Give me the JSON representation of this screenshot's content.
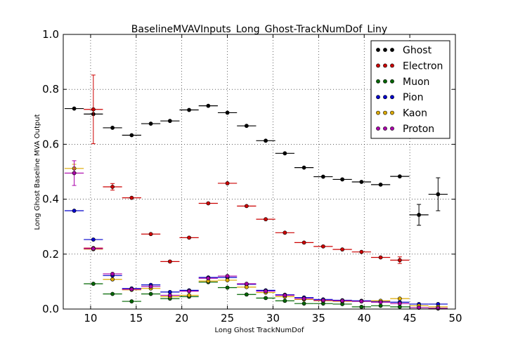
{
  "chart_data": {
    "type": "scatter",
    "title": "BaselineMVAVInputs_Long_Ghost-TrackNumDof_Liny",
    "xlabel": "Long Ghost TrackNumDof",
    "ylabel": "Long Ghost Baseline MVA Output",
    "xlim": [
      7,
      50
    ],
    "ylim": [
      0,
      1
    ],
    "xticks": [
      10,
      15,
      20,
      25,
      30,
      35,
      40,
      45,
      50
    ],
    "yticks": [
      0.0,
      0.2,
      0.4,
      0.6,
      0.8,
      1.0
    ],
    "xtick_labels": [
      "10",
      "15",
      "20",
      "25",
      "30",
      "35",
      "40",
      "45",
      "50"
    ],
    "ytick_labels": [
      "0.0",
      "0.2",
      "0.4",
      "0.6",
      "0.8",
      "1.0"
    ],
    "grid": true,
    "legend_position": "top-right",
    "bin_half_width": 1.05,
    "series": [
      {
        "name": "Ghost",
        "color": "#000000",
        "points": [
          {
            "x": 8.2,
            "y": 0.73
          },
          {
            "x": 10.3,
            "y": 0.71
          },
          {
            "x": 12.4,
            "y": 0.66
          },
          {
            "x": 14.5,
            "y": 0.633
          },
          {
            "x": 16.6,
            "y": 0.675
          },
          {
            "x": 18.7,
            "y": 0.685
          },
          {
            "x": 20.8,
            "y": 0.725
          },
          {
            "x": 22.9,
            "y": 0.74
          },
          {
            "x": 25.0,
            "y": 0.715
          },
          {
            "x": 27.1,
            "y": 0.667
          },
          {
            "x": 29.2,
            "y": 0.613
          },
          {
            "x": 31.3,
            "y": 0.567
          },
          {
            "x": 33.4,
            "y": 0.515
          },
          {
            "x": 35.5,
            "y": 0.482
          },
          {
            "x": 37.6,
            "y": 0.472
          },
          {
            "x": 39.7,
            "y": 0.463
          },
          {
            "x": 41.8,
            "y": 0.453
          },
          {
            "x": 43.9,
            "y": 0.483
          },
          {
            "x": 46.0,
            "y": 0.343,
            "err": 0.038
          },
          {
            "x": 48.1,
            "y": 0.418,
            "err": 0.06
          }
        ]
      },
      {
        "name": "Electron",
        "color": "#cc0000",
        "points": [
          {
            "x": 10.3,
            "y": 0.727,
            "err": 0.125
          },
          {
            "x": 10.3,
            "y": 0.222
          },
          {
            "x": 12.4,
            "y": 0.445,
            "err": 0.012
          },
          {
            "x": 14.5,
            "y": 0.405
          },
          {
            "x": 16.6,
            "y": 0.273
          },
          {
            "x": 18.7,
            "y": 0.173
          },
          {
            "x": 20.8,
            "y": 0.26
          },
          {
            "x": 22.9,
            "y": 0.385
          },
          {
            "x": 25.0,
            "y": 0.458
          },
          {
            "x": 27.1,
            "y": 0.375
          },
          {
            "x": 29.2,
            "y": 0.327
          },
          {
            "x": 31.3,
            "y": 0.278
          },
          {
            "x": 33.4,
            "y": 0.242
          },
          {
            "x": 35.5,
            "y": 0.228
          },
          {
            "x": 37.6,
            "y": 0.217
          },
          {
            "x": 39.7,
            "y": 0.208
          },
          {
            "x": 41.8,
            "y": 0.188
          },
          {
            "x": 43.9,
            "y": 0.178,
            "err": 0.012
          }
        ]
      },
      {
        "name": "Muon",
        "color": "#006600",
        "points": [
          {
            "x": 10.3,
            "y": 0.092
          },
          {
            "x": 12.4,
            "y": 0.055
          },
          {
            "x": 14.5,
            "y": 0.028
          },
          {
            "x": 16.6,
            "y": 0.055
          },
          {
            "x": 18.7,
            "y": 0.038
          },
          {
            "x": 20.8,
            "y": 0.045
          },
          {
            "x": 22.9,
            "y": 0.098
          },
          {
            "x": 25.0,
            "y": 0.078
          },
          {
            "x": 27.1,
            "y": 0.053
          },
          {
            "x": 29.2,
            "y": 0.04
          },
          {
            "x": 31.3,
            "y": 0.03
          },
          {
            "x": 33.4,
            "y": 0.02
          },
          {
            "x": 35.5,
            "y": 0.02
          },
          {
            "x": 37.6,
            "y": 0.018
          },
          {
            "x": 39.7,
            "y": 0.008
          },
          {
            "x": 41.8,
            "y": 0.012
          },
          {
            "x": 43.9,
            "y": 0.008
          },
          {
            "x": 46.0,
            "y": 0.005
          },
          {
            "x": 48.1,
            "y": 0.002
          }
        ]
      },
      {
        "name": "Pion",
        "color": "#0000cc",
        "points": [
          {
            "x": 8.2,
            "y": 0.358
          },
          {
            "x": 10.3,
            "y": 0.253
          },
          {
            "x": 12.4,
            "y": 0.122
          },
          {
            "x": 14.5,
            "y": 0.075
          },
          {
            "x": 16.6,
            "y": 0.088
          },
          {
            "x": 18.7,
            "y": 0.062
          },
          {
            "x": 20.8,
            "y": 0.068
          },
          {
            "x": 22.9,
            "y": 0.115
          },
          {
            "x": 25.0,
            "y": 0.115
          },
          {
            "x": 27.1,
            "y": 0.09
          },
          {
            "x": 29.2,
            "y": 0.068
          },
          {
            "x": 31.3,
            "y": 0.052
          },
          {
            "x": 33.4,
            "y": 0.042
          },
          {
            "x": 35.5,
            "y": 0.035
          },
          {
            "x": 37.6,
            "y": 0.032
          },
          {
            "x": 39.7,
            "y": 0.03
          },
          {
            "x": 41.8,
            "y": 0.028
          },
          {
            "x": 43.9,
            "y": 0.025
          },
          {
            "x": 46.0,
            "y": 0.018
          },
          {
            "x": 48.1,
            "y": 0.018
          }
        ]
      },
      {
        "name": "Kaon",
        "color": "#ddaa00",
        "points": [
          {
            "x": 8.2,
            "y": 0.512,
            "err": 0.015
          },
          {
            "x": 10.3,
            "y": 0.218
          },
          {
            "x": 12.4,
            "y": 0.108
          },
          {
            "x": 14.5,
            "y": 0.07
          },
          {
            "x": 16.6,
            "y": 0.075
          },
          {
            "x": 18.7,
            "y": 0.045
          },
          {
            "x": 20.8,
            "y": 0.05
          },
          {
            "x": 22.9,
            "y": 0.102
          },
          {
            "x": 25.0,
            "y": 0.105
          },
          {
            "x": 27.1,
            "y": 0.08
          },
          {
            "x": 29.2,
            "y": 0.06
          },
          {
            "x": 31.3,
            "y": 0.045
          },
          {
            "x": 33.4,
            "y": 0.035
          },
          {
            "x": 35.5,
            "y": 0.03
          },
          {
            "x": 37.6,
            "y": 0.028
          },
          {
            "x": 39.7,
            "y": 0.028
          },
          {
            "x": 41.8,
            "y": 0.03
          },
          {
            "x": 43.9,
            "y": 0.038
          },
          {
            "x": 46.0,
            "y": 0.012
          },
          {
            "x": 48.1,
            "y": 0.008
          }
        ]
      },
      {
        "name": "Proton",
        "color": "#aa00aa",
        "points": [
          {
            "x": 8.2,
            "y": 0.495,
            "err": 0.045
          },
          {
            "x": 10.3,
            "y": 0.22
          },
          {
            "x": 12.4,
            "y": 0.128
          },
          {
            "x": 14.5,
            "y": 0.072
          },
          {
            "x": 16.6,
            "y": 0.082
          },
          {
            "x": 18.7,
            "y": 0.05
          },
          {
            "x": 20.8,
            "y": 0.065
          },
          {
            "x": 22.9,
            "y": 0.112
          },
          {
            "x": 25.0,
            "y": 0.12
          },
          {
            "x": 27.1,
            "y": 0.092
          },
          {
            "x": 29.2,
            "y": 0.065
          },
          {
            "x": 31.3,
            "y": 0.05
          },
          {
            "x": 33.4,
            "y": 0.038
          },
          {
            "x": 35.5,
            "y": 0.032
          },
          {
            "x": 37.6,
            "y": 0.03
          },
          {
            "x": 39.7,
            "y": 0.028
          },
          {
            "x": 41.8,
            "y": 0.025
          },
          {
            "x": 43.9,
            "y": 0.02
          },
          {
            "x": 46.0,
            "y": 0.005
          },
          {
            "x": 48.1,
            "y": 0.003
          }
        ]
      }
    ]
  }
}
